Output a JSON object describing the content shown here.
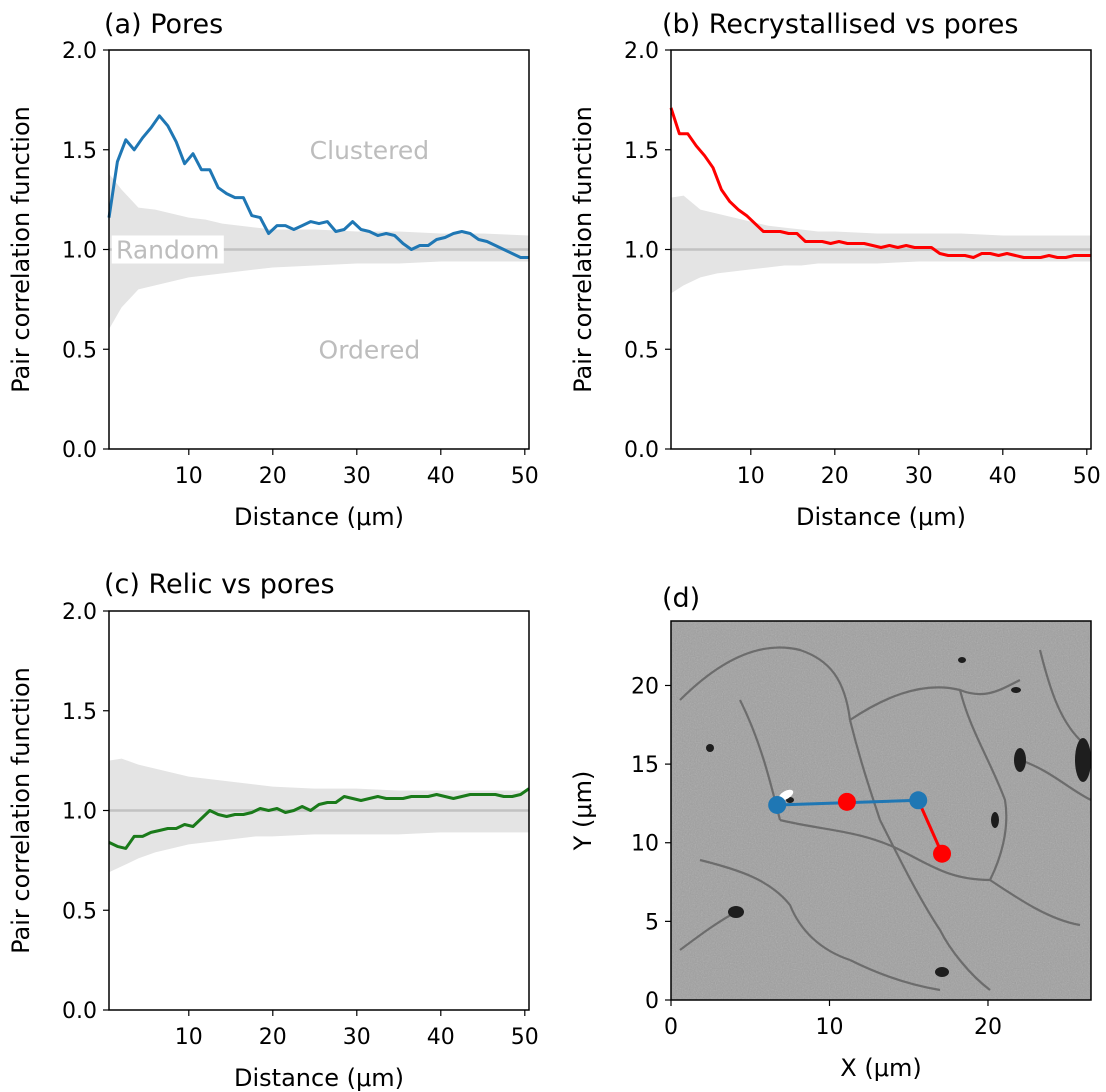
{
  "colors": {
    "pores": "#1f77b4",
    "recrystallised": "#ff0000",
    "relic": "#1a7a1a",
    "envelope": "#e4e4e4",
    "baseline": "#c2c2c2",
    "annotation": "#bdbdbd"
  },
  "panels": {
    "a": {
      "title": "(a) Pores"
    },
    "b": {
      "title": "(b)  Recrystallised vs pores"
    },
    "c": {
      "title": "(c)  Relic vs pores"
    },
    "d": {
      "title": "(d)"
    }
  },
  "annotations": {
    "clustered": "Clustered",
    "random": "Random",
    "ordered": "Ordered"
  },
  "chart_data": [
    {
      "type": "line",
      "panel": "a",
      "title": "(a) Pores",
      "xlabel": "Distance (μm)",
      "ylabel": "Pair correlation function",
      "xlim": [
        0.5,
        50.5
      ],
      "ylim": [
        0,
        2
      ],
      "xticks": [
        10,
        20,
        30,
        40,
        50
      ],
      "yticks": [
        0.0,
        0.5,
        1.0,
        1.5,
        2.0
      ],
      "ytick_labels": [
        "0.0",
        "0.5",
        "1.0",
        "1.5",
        "2.0"
      ],
      "baseline": 1.0,
      "envelope": {
        "x": [
          0.5,
          2,
          4,
          6,
          8,
          10,
          12,
          14,
          16,
          18,
          20,
          25,
          30,
          35,
          40,
          45,
          50.5
        ],
        "upper": [
          1.38,
          1.3,
          1.21,
          1.2,
          1.18,
          1.16,
          1.15,
          1.13,
          1.12,
          1.11,
          1.1,
          1.1,
          1.09,
          1.09,
          1.08,
          1.08,
          1.07
        ],
        "lower": [
          0.6,
          0.71,
          0.8,
          0.82,
          0.84,
          0.86,
          0.87,
          0.88,
          0.89,
          0.9,
          0.91,
          0.92,
          0.93,
          0.93,
          0.94,
          0.94,
          0.94
        ]
      },
      "series": [
        {
          "x": [
            0.5,
            1.5,
            2.5,
            3.5,
            4.5,
            5.5,
            6.5,
            7.5,
            8.5,
            9.5,
            10.5,
            11.5,
            12.5,
            13.5,
            14.5,
            15.5,
            16.5,
            17.5,
            18.5,
            19.5,
            20.5,
            21.5,
            22.5,
            23.5,
            24.5,
            25.5,
            26.5,
            27.5,
            28.5,
            29.5,
            30.5,
            31.5,
            32.5,
            33.5,
            34.5,
            35.5,
            36.5,
            37.5,
            38.5,
            39.5,
            40.5,
            41.5,
            42.5,
            43.5,
            44.5,
            45.5,
            46.5,
            47.5,
            48.5,
            49.5,
            50.5
          ],
          "values": [
            1.16,
            1.44,
            1.55,
            1.5,
            1.56,
            1.61,
            1.67,
            1.62,
            1.54,
            1.43,
            1.48,
            1.4,
            1.4,
            1.31,
            1.28,
            1.26,
            1.26,
            1.17,
            1.16,
            1.08,
            1.12,
            1.12,
            1.1,
            1.12,
            1.14,
            1.13,
            1.14,
            1.09,
            1.1,
            1.14,
            1.1,
            1.09,
            1.07,
            1.08,
            1.07,
            1.03,
            1.0,
            1.02,
            1.02,
            1.05,
            1.06,
            1.08,
            1.09,
            1.08,
            1.05,
            1.04,
            1.02,
            1.0,
            0.98,
            0.96,
            0.96
          ]
        }
      ]
    },
    {
      "type": "line",
      "panel": "b",
      "title": "(b)  Recrystallised vs pores",
      "xlabel": "Distance (μm)",
      "ylabel": "Pair correlation function",
      "xlim": [
        0.5,
        50.5
      ],
      "ylim": [
        0,
        2
      ],
      "xticks": [
        10,
        20,
        30,
        40,
        50
      ],
      "yticks": [
        0.0,
        0.5,
        1.0,
        1.5,
        2.0
      ],
      "ytick_labels": [
        "0.0",
        "0.5",
        "1.0",
        "1.5",
        "2.0"
      ],
      "baseline": 1.0,
      "envelope": {
        "x": [
          0.5,
          2,
          4,
          6,
          8,
          10,
          12,
          14,
          16,
          18,
          20,
          25,
          30,
          35,
          40,
          45,
          50.5
        ],
        "upper": [
          1.26,
          1.27,
          1.2,
          1.18,
          1.16,
          1.14,
          1.12,
          1.11,
          1.1,
          1.09,
          1.09,
          1.08,
          1.08,
          1.08,
          1.07,
          1.07,
          1.07
        ],
        "lower": [
          0.78,
          0.82,
          0.86,
          0.88,
          0.89,
          0.9,
          0.91,
          0.92,
          0.92,
          0.93,
          0.93,
          0.93,
          0.94,
          0.94,
          0.94,
          0.94,
          0.94
        ]
      },
      "series": [
        {
          "x": [
            0.5,
            1.5,
            2.5,
            3.5,
            4.5,
            5.5,
            6.5,
            7.5,
            8.5,
            9.5,
            10.5,
            11.5,
            12.5,
            13.5,
            14.5,
            15.5,
            16.5,
            17.5,
            18.5,
            19.5,
            20.5,
            21.5,
            22.5,
            23.5,
            24.5,
            25.5,
            26.5,
            27.5,
            28.5,
            29.5,
            30.5,
            31.5,
            32.5,
            33.5,
            34.5,
            35.5,
            36.5,
            37.5,
            38.5,
            39.5,
            40.5,
            41.5,
            42.5,
            43.5,
            44.5,
            45.5,
            46.5,
            47.5,
            48.5,
            49.5,
            50.5
          ],
          "values": [
            1.71,
            1.58,
            1.58,
            1.52,
            1.47,
            1.41,
            1.3,
            1.24,
            1.2,
            1.17,
            1.13,
            1.09,
            1.09,
            1.09,
            1.08,
            1.08,
            1.04,
            1.04,
            1.04,
            1.03,
            1.04,
            1.03,
            1.03,
            1.03,
            1.02,
            1.01,
            1.02,
            1.01,
            1.02,
            1.01,
            1.01,
            1.01,
            0.98,
            0.97,
            0.97,
            0.97,
            0.96,
            0.98,
            0.98,
            0.97,
            0.98,
            0.97,
            0.96,
            0.96,
            0.96,
            0.97,
            0.96,
            0.96,
            0.97,
            0.97,
            0.97
          ]
        }
      ]
    },
    {
      "type": "line",
      "panel": "c",
      "title": "(c)  Relic vs pores",
      "xlabel": "Distance (μm)",
      "ylabel": "Pair correlation function",
      "xlim": [
        0.5,
        50.5
      ],
      "ylim": [
        0,
        2
      ],
      "xticks": [
        10,
        20,
        30,
        40,
        50
      ],
      "yticks": [
        0.0,
        0.5,
        1.0,
        1.5,
        2.0
      ],
      "ytick_labels": [
        "0.0",
        "0.5",
        "1.0",
        "1.5",
        "2.0"
      ],
      "baseline": 1.0,
      "envelope": {
        "x": [
          0.5,
          2,
          4,
          6,
          8,
          10,
          12,
          14,
          16,
          18,
          20,
          25,
          30,
          35,
          40,
          45,
          50.5
        ],
        "upper": [
          1.25,
          1.26,
          1.23,
          1.21,
          1.19,
          1.17,
          1.16,
          1.15,
          1.14,
          1.13,
          1.12,
          1.11,
          1.11,
          1.1,
          1.1,
          1.1,
          1.1
        ],
        "lower": [
          0.69,
          0.72,
          0.76,
          0.79,
          0.81,
          0.83,
          0.84,
          0.85,
          0.86,
          0.87,
          0.87,
          0.88,
          0.88,
          0.88,
          0.89,
          0.89,
          0.89
        ]
      },
      "series": [
        {
          "x": [
            0.5,
            1.5,
            2.5,
            3.5,
            4.5,
            5.5,
            6.5,
            7.5,
            8.5,
            9.5,
            10.5,
            11.5,
            12.5,
            13.5,
            14.5,
            15.5,
            16.5,
            17.5,
            18.5,
            19.5,
            20.5,
            21.5,
            22.5,
            23.5,
            24.5,
            25.5,
            26.5,
            27.5,
            28.5,
            29.5,
            30.5,
            31.5,
            32.5,
            33.5,
            34.5,
            35.5,
            36.5,
            37.5,
            38.5,
            39.5,
            40.5,
            41.5,
            42.5,
            43.5,
            44.5,
            45.5,
            46.5,
            47.5,
            48.5,
            49.5,
            50.5
          ],
          "values": [
            0.84,
            0.82,
            0.81,
            0.87,
            0.87,
            0.89,
            0.9,
            0.91,
            0.91,
            0.93,
            0.92,
            0.96,
            1.0,
            0.98,
            0.97,
            0.98,
            0.98,
            0.99,
            1.01,
            1.0,
            1.01,
            0.99,
            1.0,
            1.02,
            1.0,
            1.03,
            1.04,
            1.04,
            1.07,
            1.06,
            1.05,
            1.06,
            1.07,
            1.06,
            1.06,
            1.06,
            1.07,
            1.07,
            1.07,
            1.08,
            1.07,
            1.06,
            1.07,
            1.08,
            1.08,
            1.08,
            1.08,
            1.07,
            1.07,
            1.08,
            1.11
          ]
        }
      ]
    },
    {
      "type": "scatter",
      "panel": "d",
      "title": "(d)",
      "xlabel": "X (μm)",
      "ylabel": "Y (μm)",
      "xlim": [
        0,
        26.5
      ],
      "ylim": [
        0,
        24.1
      ],
      "xticks": [
        0,
        10,
        20
      ],
      "yticks": [
        0,
        5,
        10,
        15,
        20
      ],
      "ytick_labels": [
        "0",
        "5",
        "10",
        "15",
        "20"
      ],
      "background": "grayscale microstructure micrograph",
      "series": [
        {
          "color": "#1f77b4",
          "points": [
            [
              6.7,
              12.4
            ],
            [
              15.6,
              12.7
            ]
          ]
        },
        {
          "color": "#ff0000",
          "points": [
            [
              11.1,
              12.6
            ],
            [
              17.1,
              9.3
            ]
          ]
        }
      ],
      "links": [
        {
          "color": "#1f77b4",
          "from": [
            6.7,
            12.4
          ],
          "to": [
            15.6,
            12.7
          ]
        },
        {
          "color": "#ff0000",
          "from": [
            15.6,
            12.7
          ],
          "to": [
            17.1,
            9.3
          ]
        }
      ]
    }
  ]
}
